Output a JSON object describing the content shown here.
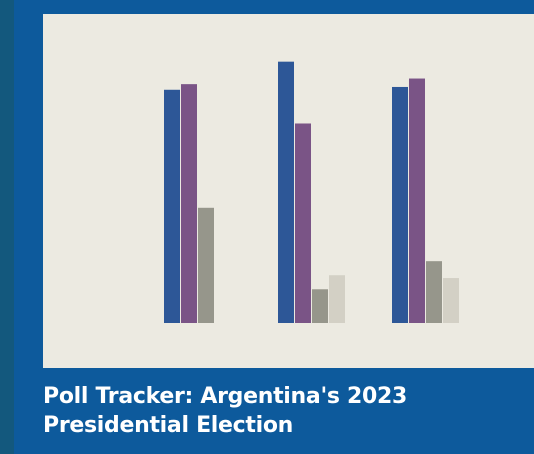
{
  "page": {
    "title": "Poll Tracker: Argentina's 2023 Presidential Election"
  },
  "colors": {
    "background": "#0d5a9c",
    "card": "#eceae1"
  },
  "chart_data": {
    "type": "bar",
    "categories": [
      "",
      "",
      ""
    ],
    "series": [
      {
        "values": [
          83,
          93,
          84
        ],
        "color": "#2d5797"
      },
      {
        "values": [
          85,
          71,
          87
        ],
        "color": "#7a5486"
      },
      {
        "values": [
          41,
          12,
          22
        ],
        "color": "#96968b"
      },
      {
        "values": [
          null,
          17,
          16
        ],
        "color": "#d3d0c5"
      }
    ],
    "ylim": [
      0,
      100
    ],
    "grid": false,
    "legend": "none",
    "xlabel": "",
    "ylabel": ""
  }
}
